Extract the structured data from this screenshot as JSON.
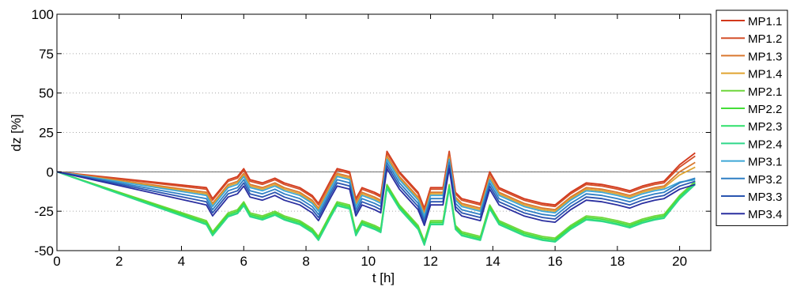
{
  "chart_data": {
    "type": "line",
    "title": "",
    "xlabel": "t [h]",
    "ylabel": "dz [%]",
    "xlim": [
      0,
      21
    ],
    "ylim": [
      -50,
      100
    ],
    "x_ticks": [
      "0",
      "2",
      "4",
      "6",
      "8",
      "10",
      "12",
      "14",
      "16",
      "18",
      "20"
    ],
    "y_ticks": [
      "-50",
      "-25",
      "0",
      "25",
      "50",
      "75",
      "100"
    ],
    "grid": "y-dotted",
    "legend": "outside-right",
    "colors": {
      "MP1.1": "#d2381c",
      "MP1.2": "#d4502a",
      "MP1.3": "#d9782f",
      "MP1.4": "#e0a430",
      "MP2.1": "#6fd63a",
      "MP2.2": "#45dd38",
      "MP2.3": "#2fe06a",
      "MP2.4": "#2fd88a",
      "MP3.1": "#3ea7d6",
      "MP3.2": "#2f7fc4",
      "MP3.3": "#2a55b0",
      "MP3.4": "#2a2fa0"
    },
    "base_profile": {
      "x": [
        0,
        4.8,
        5.0,
        5.5,
        5.8,
        6.0,
        6.2,
        6.6,
        7.0,
        7.3,
        7.8,
        8.2,
        8.4,
        8.8,
        9.0,
        9.4,
        9.6,
        9.8,
        10.2,
        10.4,
        10.6,
        11.0,
        11.6,
        11.8,
        12.0,
        12.4,
        12.6,
        12.8,
        13.0,
        13.6,
        13.9,
        14.2,
        15.0,
        15.6,
        16.0,
        16.5,
        17.0,
        17.5,
        18.0,
        18.4,
        18.8,
        19.2,
        19.5,
        20.0,
        20.5
      ],
      "y": [
        0,
        -15,
        -22,
        -10,
        -8,
        -3,
        -10,
        -12,
        -9,
        -12,
        -15,
        -20,
        -25,
        -10,
        -3,
        -5,
        -22,
        -15,
        -18,
        -20,
        8,
        -5,
        -18,
        -28,
        -15,
        -15,
        8,
        -18,
        -22,
        -25,
        -5,
        -15,
        -22,
        -25,
        -26,
        -18,
        -12,
        -13,
        -15,
        -17,
        -14,
        -12,
        -11,
        -8,
        -5
      ]
    },
    "series": [
      {
        "name": "MP1.1",
        "offset": 5,
        "endpoint": 12
      },
      {
        "name": "MP1.2",
        "offset": 4,
        "endpoint": 10
      },
      {
        "name": "MP1.3",
        "offset": 2,
        "endpoint": 6
      },
      {
        "name": "MP1.4",
        "offset": 1,
        "endpoint": 3
      },
      {
        "name": "MP2.1",
        "offset": -16,
        "endpoint": -6
      },
      {
        "name": "MP2.2",
        "offset": -17,
        "endpoint": -7
      },
      {
        "name": "MP2.3",
        "offset": -18,
        "endpoint": -7
      },
      {
        "name": "MP2.4",
        "offset": -18.5,
        "endpoint": -8
      },
      {
        "name": "MP3.1",
        "offset": 0,
        "endpoint": -5
      },
      {
        "name": "MP3.2",
        "offset": -2,
        "endpoint": -4
      },
      {
        "name": "MP3.3",
        "offset": -4,
        "endpoint": -6
      },
      {
        "name": "MP3.4",
        "offset": -6,
        "endpoint": -8
      }
    ]
  }
}
